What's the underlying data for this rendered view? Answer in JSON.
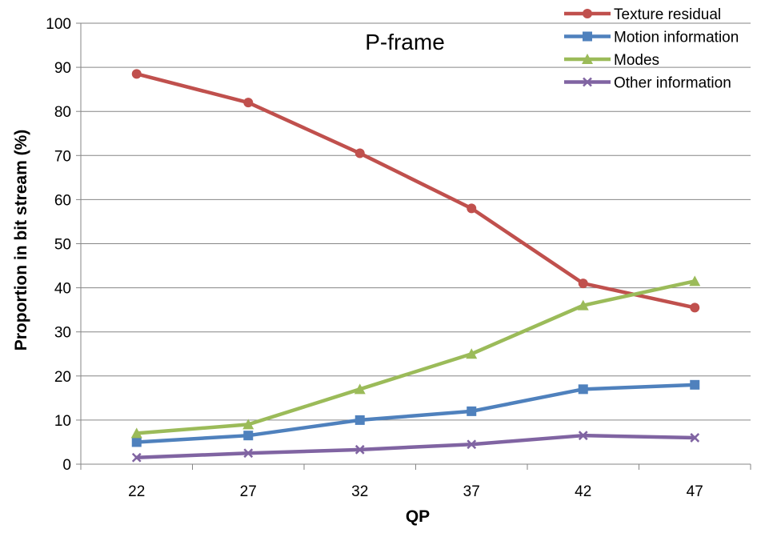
{
  "chart_data": {
    "type": "line",
    "title": "P-frame",
    "xlabel": "QP",
    "ylabel": "Proportion in bit stream (%)",
    "categories": [
      "22",
      "27",
      "32",
      "37",
      "42",
      "47"
    ],
    "ylim": [
      0,
      100
    ],
    "yticks": [
      0,
      10,
      20,
      30,
      40,
      50,
      60,
      70,
      80,
      90,
      100
    ],
    "grid": "horizontal",
    "legend_position": "top-right",
    "series": [
      {
        "name": "Texture residual",
        "color": "#C0504D",
        "marker": "circle",
        "values": [
          88.5,
          82,
          70.5,
          58,
          41,
          35.5
        ]
      },
      {
        "name": "Motion information",
        "color": "#4F81BD",
        "marker": "square",
        "values": [
          5,
          6.5,
          10,
          12,
          17,
          18
        ]
      },
      {
        "name": "Modes",
        "color": "#9BBB59",
        "marker": "triangle",
        "values": [
          7,
          9,
          17,
          25,
          36,
          41.5
        ]
      },
      {
        "name": "Other information",
        "color": "#8064A2",
        "marker": "x",
        "values": [
          1.5,
          2.5,
          3.3,
          4.5,
          6.5,
          6
        ]
      }
    ]
  }
}
